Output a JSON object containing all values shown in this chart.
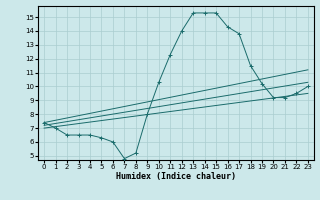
{
  "xlabel": "Humidex (Indice chaleur)",
  "ylabel": "",
  "bg_color": "#cce8ea",
  "grid_color": "#aacdd0",
  "line_color": "#1a6b6b",
  "xlim": [
    -0.5,
    23.5
  ],
  "ylim": [
    4.7,
    15.8
  ],
  "yticks": [
    5,
    6,
    7,
    8,
    9,
    10,
    11,
    12,
    13,
    14,
    15
  ],
  "xticks": [
    0,
    1,
    2,
    3,
    4,
    5,
    6,
    7,
    8,
    9,
    10,
    11,
    12,
    13,
    14,
    15,
    16,
    17,
    18,
    19,
    20,
    21,
    22,
    23
  ],
  "series_main": {
    "x": [
      0,
      1,
      2,
      3,
      4,
      5,
      6,
      7,
      8,
      9,
      10,
      11,
      12,
      13,
      14,
      15,
      16,
      17,
      18,
      19,
      20,
      21,
      22,
      23
    ],
    "y": [
      7.4,
      7.0,
      6.5,
      6.5,
      6.5,
      6.3,
      6.0,
      4.8,
      5.2,
      8.0,
      10.3,
      12.3,
      14.0,
      15.3,
      15.3,
      15.3,
      14.3,
      13.8,
      11.5,
      10.2,
      9.2,
      9.2,
      9.5,
      10.0
    ]
  },
  "series_lines": [
    {
      "x": [
        0,
        23
      ],
      "y": [
        7.4,
        11.2
      ]
    },
    {
      "x": [
        0,
        23
      ],
      "y": [
        7.2,
        10.3
      ]
    },
    {
      "x": [
        0,
        23
      ],
      "y": [
        7.0,
        9.5
      ]
    }
  ],
  "xlabel_fontsize": 6,
  "tick_fontsize": 5
}
